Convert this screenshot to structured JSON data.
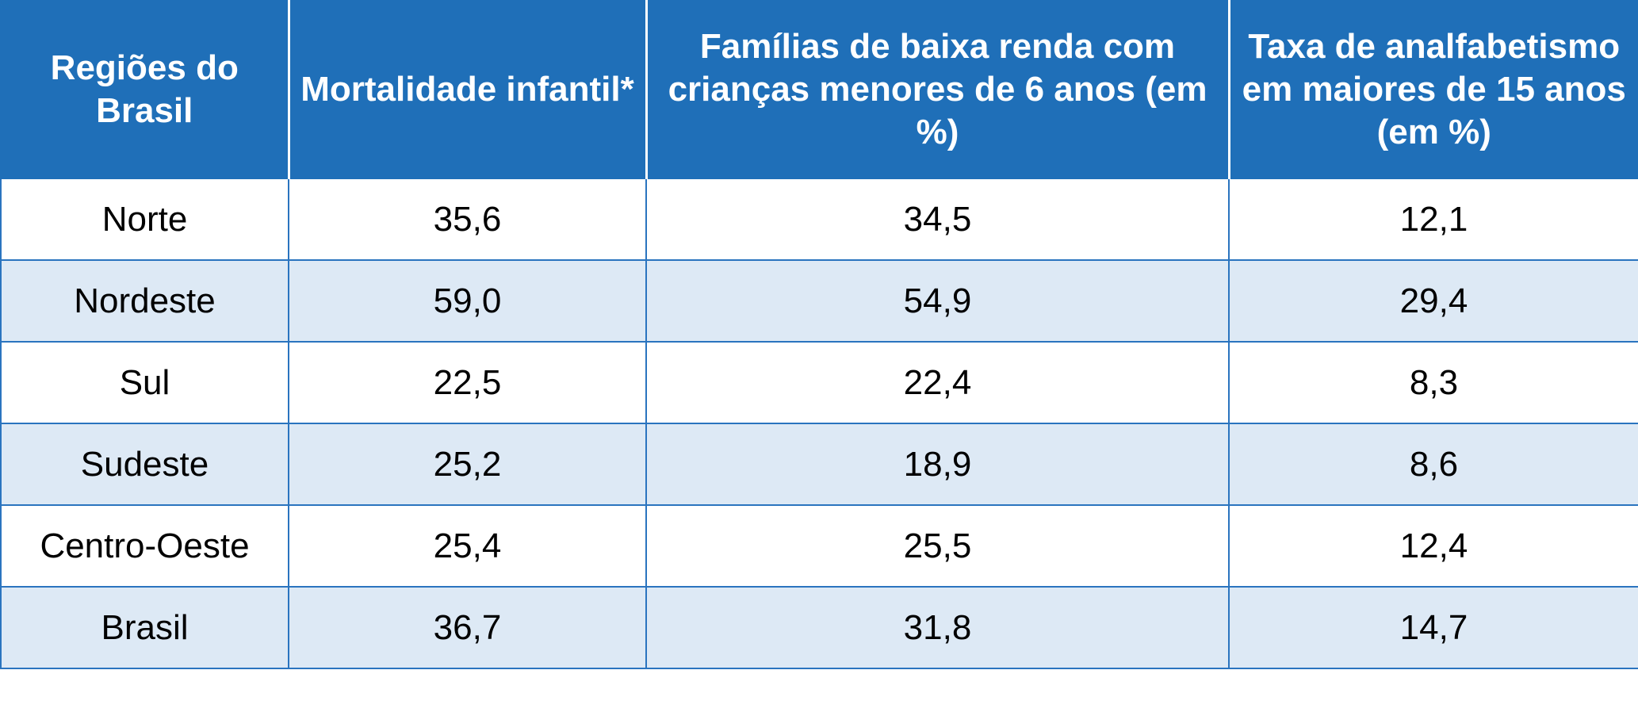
{
  "chart_data": {
    "type": "table",
    "headers": [
      "Regiões do Brasil",
      "Mortalidade infantil*",
      "Famílias de baixa renda com crianças menores de 6 anos (em %)",
      "Taxa de analfabetismo em maiores de 15 anos (em %)"
    ],
    "rows": [
      [
        "Norte",
        "35,6",
        "34,5",
        "12,1"
      ],
      [
        "Nordeste",
        "59,0",
        "54,9",
        "29,4"
      ],
      [
        "Sul",
        "22,5",
        "22,4",
        "8,3"
      ],
      [
        "Sudeste",
        "25,2",
        "18,9",
        "8,6"
      ],
      [
        "Centro-Oeste",
        "25,4",
        "25,5",
        "12,4"
      ],
      [
        "Brasil",
        "36,7",
        "31,8",
        "14,7"
      ]
    ]
  },
  "colors": {
    "header_background": "#1f6fb8",
    "header_text": "#ffffff",
    "row_alt_background": "#dde9f5",
    "grid_line": "#2a74bf"
  }
}
